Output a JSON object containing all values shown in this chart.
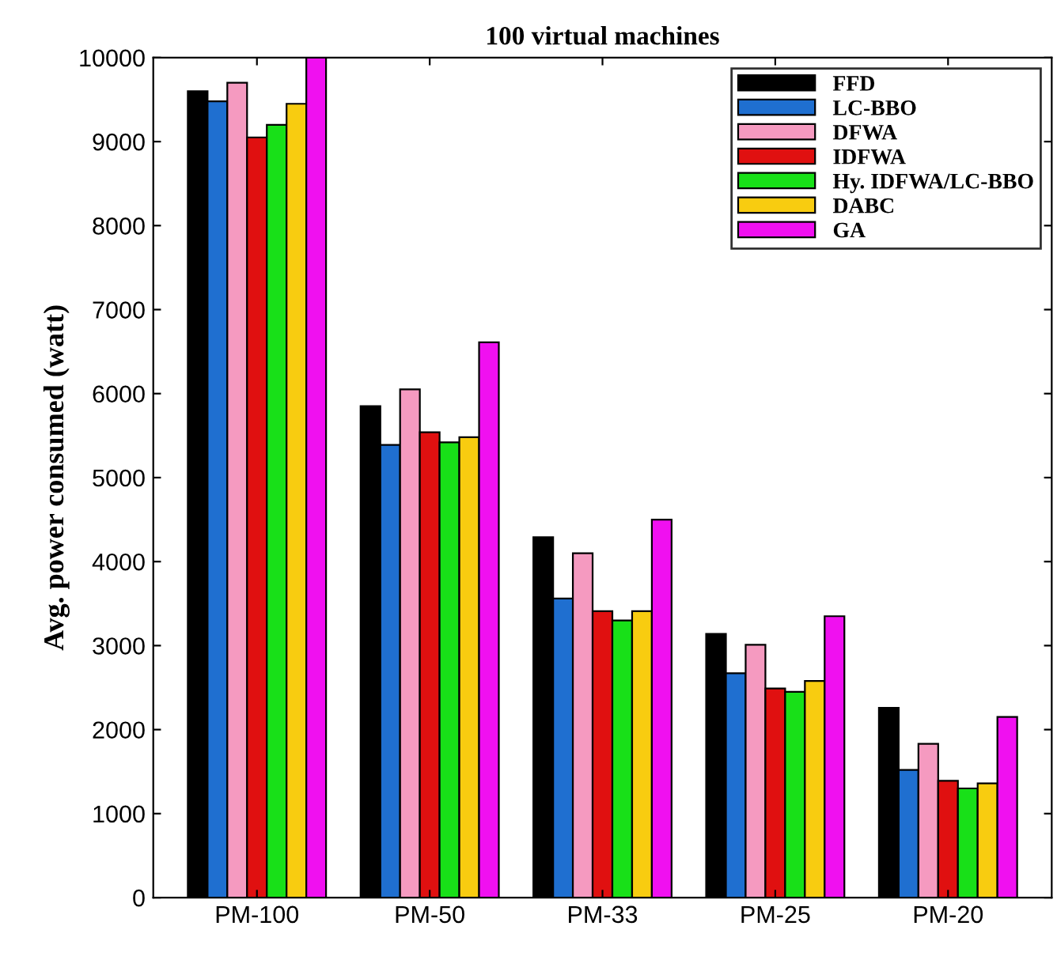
{
  "chart_data": {
    "type": "bar",
    "title": "100 virtual machines",
    "ylabel": "Avg. power consumed (watt)",
    "categories": [
      "PM-100",
      "PM-50",
      "PM-33",
      "PM-25",
      "PM-20"
    ],
    "series": [
      {
        "name": "FFD",
        "color": "#000000",
        "values": [
          9600,
          5850,
          4290,
          3140,
          2260
        ]
      },
      {
        "name": "LC-BBO",
        "color": "#1f6fd0",
        "values": [
          9480,
          5390,
          3560,
          2670,
          1520
        ]
      },
      {
        "name": "DFWA",
        "color": "#f59ac0",
        "values": [
          9700,
          6050,
          4100,
          3010,
          1830
        ]
      },
      {
        "name": "IDFWA",
        "color": "#e01010",
        "values": [
          9050,
          5540,
          3410,
          2490,
          1390
        ]
      },
      {
        "name": "Hy. IDFWA/LC-BBO",
        "color": "#18e018",
        "values": [
          9200,
          5420,
          3300,
          2450,
          1300
        ]
      },
      {
        "name": "DABC",
        "color": "#f8cc10",
        "values": [
          9450,
          5480,
          3410,
          2580,
          1360
        ]
      },
      {
        "name": "GA",
        "color": "#f010f0",
        "values": [
          10000,
          6610,
          4500,
          3350,
          2150
        ]
      }
    ],
    "ylim": [
      0,
      10000
    ],
    "yticks": [
      0,
      1000,
      2000,
      3000,
      4000,
      5000,
      6000,
      7000,
      8000,
      9000,
      10000
    ],
    "grid": false,
    "legend": "top right"
  }
}
